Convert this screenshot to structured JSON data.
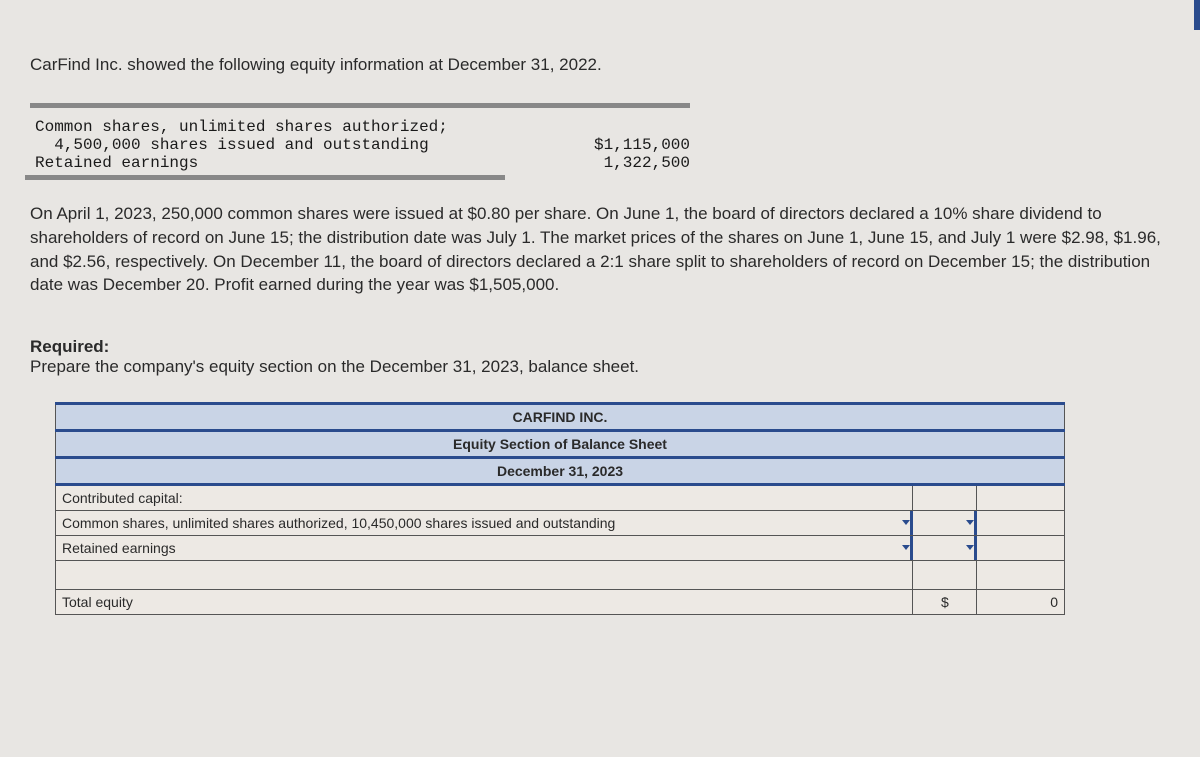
{
  "intro": "CarFind Inc. showed the following equity information at December 31, 2022.",
  "equity_info": {
    "font": "monospace",
    "lines": [
      {
        "label": "Common shares, unlimited shares authorized;",
        "value": ""
      },
      {
        "label": "  4,500,000 shares issued and outstanding",
        "value": "$1,115,000"
      },
      {
        "label": "Retained earnings",
        "value": "1,322,500"
      }
    ]
  },
  "body_paragraph": "On April 1, 2023, 250,000 common shares were issued at $0.80 per share. On June 1, the board of directors declared a 10% share dividend to shareholders of record on June 15; the distribution date was July 1. The market prices of the shares on June 1, June 15, and July 1 were $2.98, $1.96, and $2.56, respectively. On December 11, the board of directors declared a 2:1 share split to shareholders of record on December 15; the distribution date was December 20. Profit earned during the year was $1,505,000.",
  "required": {
    "heading": "Required:",
    "text": "Prepare the company's equity section on the December 31, 2023, balance sheet."
  },
  "balance_sheet": {
    "header1": "CARFIND INC.",
    "header2": "Equity Section of Balance Sheet",
    "header3": "December 31, 2023",
    "rows": {
      "contributed": "Contributed capital:",
      "common": "Common shares, unlimited shares authorized, 10,450,000 shares issued and outstanding",
      "retained": "Retained earnings",
      "total": "Total equity",
      "total_sym": "$",
      "total_val": "0"
    },
    "colors": {
      "header_bg": "#c9d4e6",
      "header_border": "#2a4b8d",
      "cell_bg": "#ede9e4",
      "border": "#555555"
    }
  }
}
